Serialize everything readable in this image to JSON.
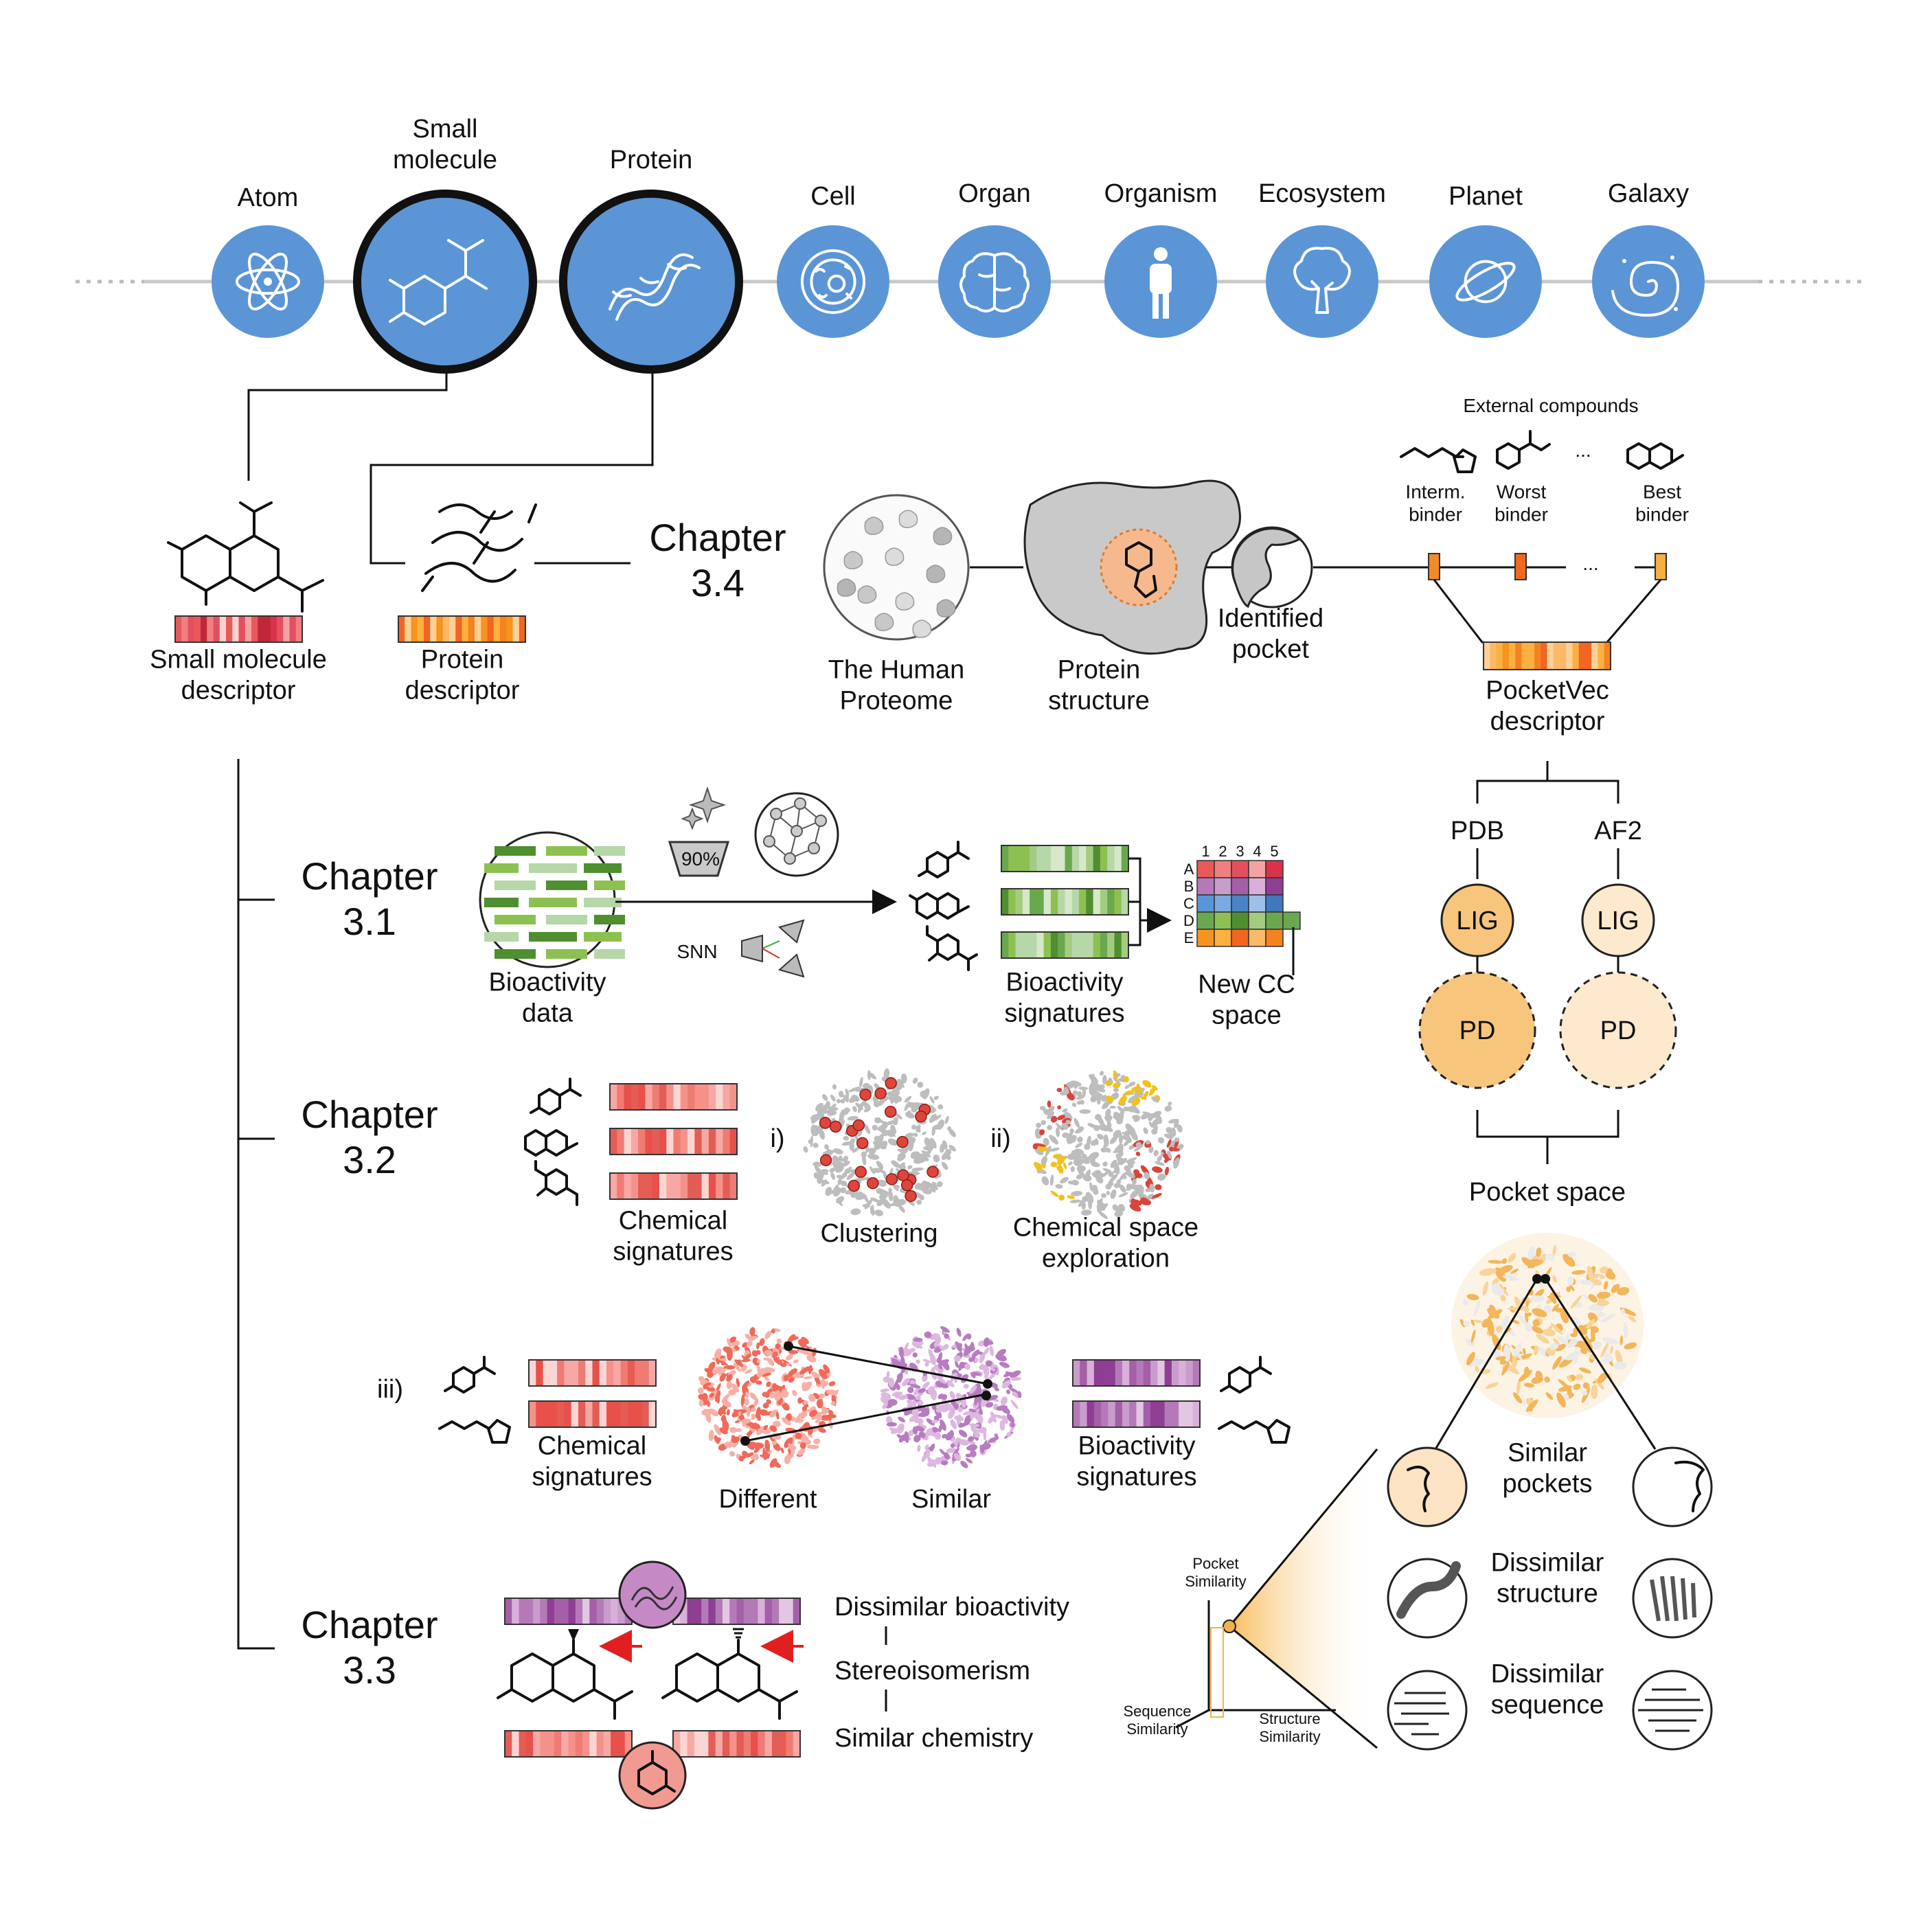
{
  "scale": {
    "items": [
      {
        "label": "Atom",
        "icon": "atom-icon"
      },
      {
        "label": "Small\nmolecule",
        "icon": "small-molecule-icon"
      },
      {
        "label": "Protein",
        "icon": "protein-icon"
      },
      {
        "label": "Cell",
        "icon": "cell-icon"
      },
      {
        "label": "Organ",
        "icon": "brain-icon"
      },
      {
        "label": "Organism",
        "icon": "person-icon"
      },
      {
        "label": "Ecosystem",
        "icon": "tree-icon"
      },
      {
        "label": "Planet",
        "icon": "planet-icon"
      },
      {
        "label": "Galaxy",
        "icon": "galaxy-icon"
      }
    ],
    "color": "#5b95d6"
  },
  "descriptors": {
    "small_molecule": "Small molecule\ndescriptor",
    "protein": "Protein\ndescriptor"
  },
  "chapters": {
    "c34": "Chapter\n3.4",
    "c31": "Chapter\n3.1",
    "c32": "Chapter\n3.2",
    "c33": "Chapter\n3.3"
  },
  "ch34": {
    "proteome": "The Human\nProteome",
    "structure": "Protein\nstructure",
    "pocket": "Identified\npocket",
    "external": "External compounds",
    "ellipsis": "...",
    "binders": [
      "Interm.\nbinder",
      "Worst\nbinder",
      "Best\nbinder"
    ],
    "pocketvec": "PocketVec\ndescriptor",
    "pdb": "PDB",
    "af2": "AF2",
    "lig": "LIG",
    "pd": "PD",
    "pocket_space": "Pocket space",
    "similar": "Similar\npockets",
    "dis_structure": "Dissimilar\nstructure",
    "dis_sequence": "Dissimilar\nsequence",
    "axis_pocket": "Pocket\nSimilarity",
    "axis_sequence": "Sequence\nSimilarity",
    "axis_structure": "Structure\nSimilarity"
  },
  "ch31": {
    "bioactivity_data": "Bioactivity\ndata",
    "percent": "90%",
    "snn": "SNN",
    "signatures": "Bioactivity\nsignatures",
    "space": "New CC\nspace",
    "cols": [
      "1",
      "2",
      "3",
      "4",
      "5"
    ],
    "rows": [
      "A",
      "B",
      "C",
      "D",
      "E"
    ]
  },
  "ch32": {
    "chem_signatures": "Chemical\nsignatures",
    "i": "i)",
    "clustering": "Clustering",
    "ii": "ii)",
    "exploration": "Chemical space\nexploration",
    "iii": "iii)",
    "chem_signatures2": "Chemical\nsignatures",
    "different": "Different",
    "similar": "Similar",
    "bio_signatures": "Bioactivity\nsignatures"
  },
  "ch33": {
    "dis_bio": "Dissimilar bioactivity",
    "stereo": "Stereoisomerism",
    "sim_chem": "Similar chemistry"
  }
}
